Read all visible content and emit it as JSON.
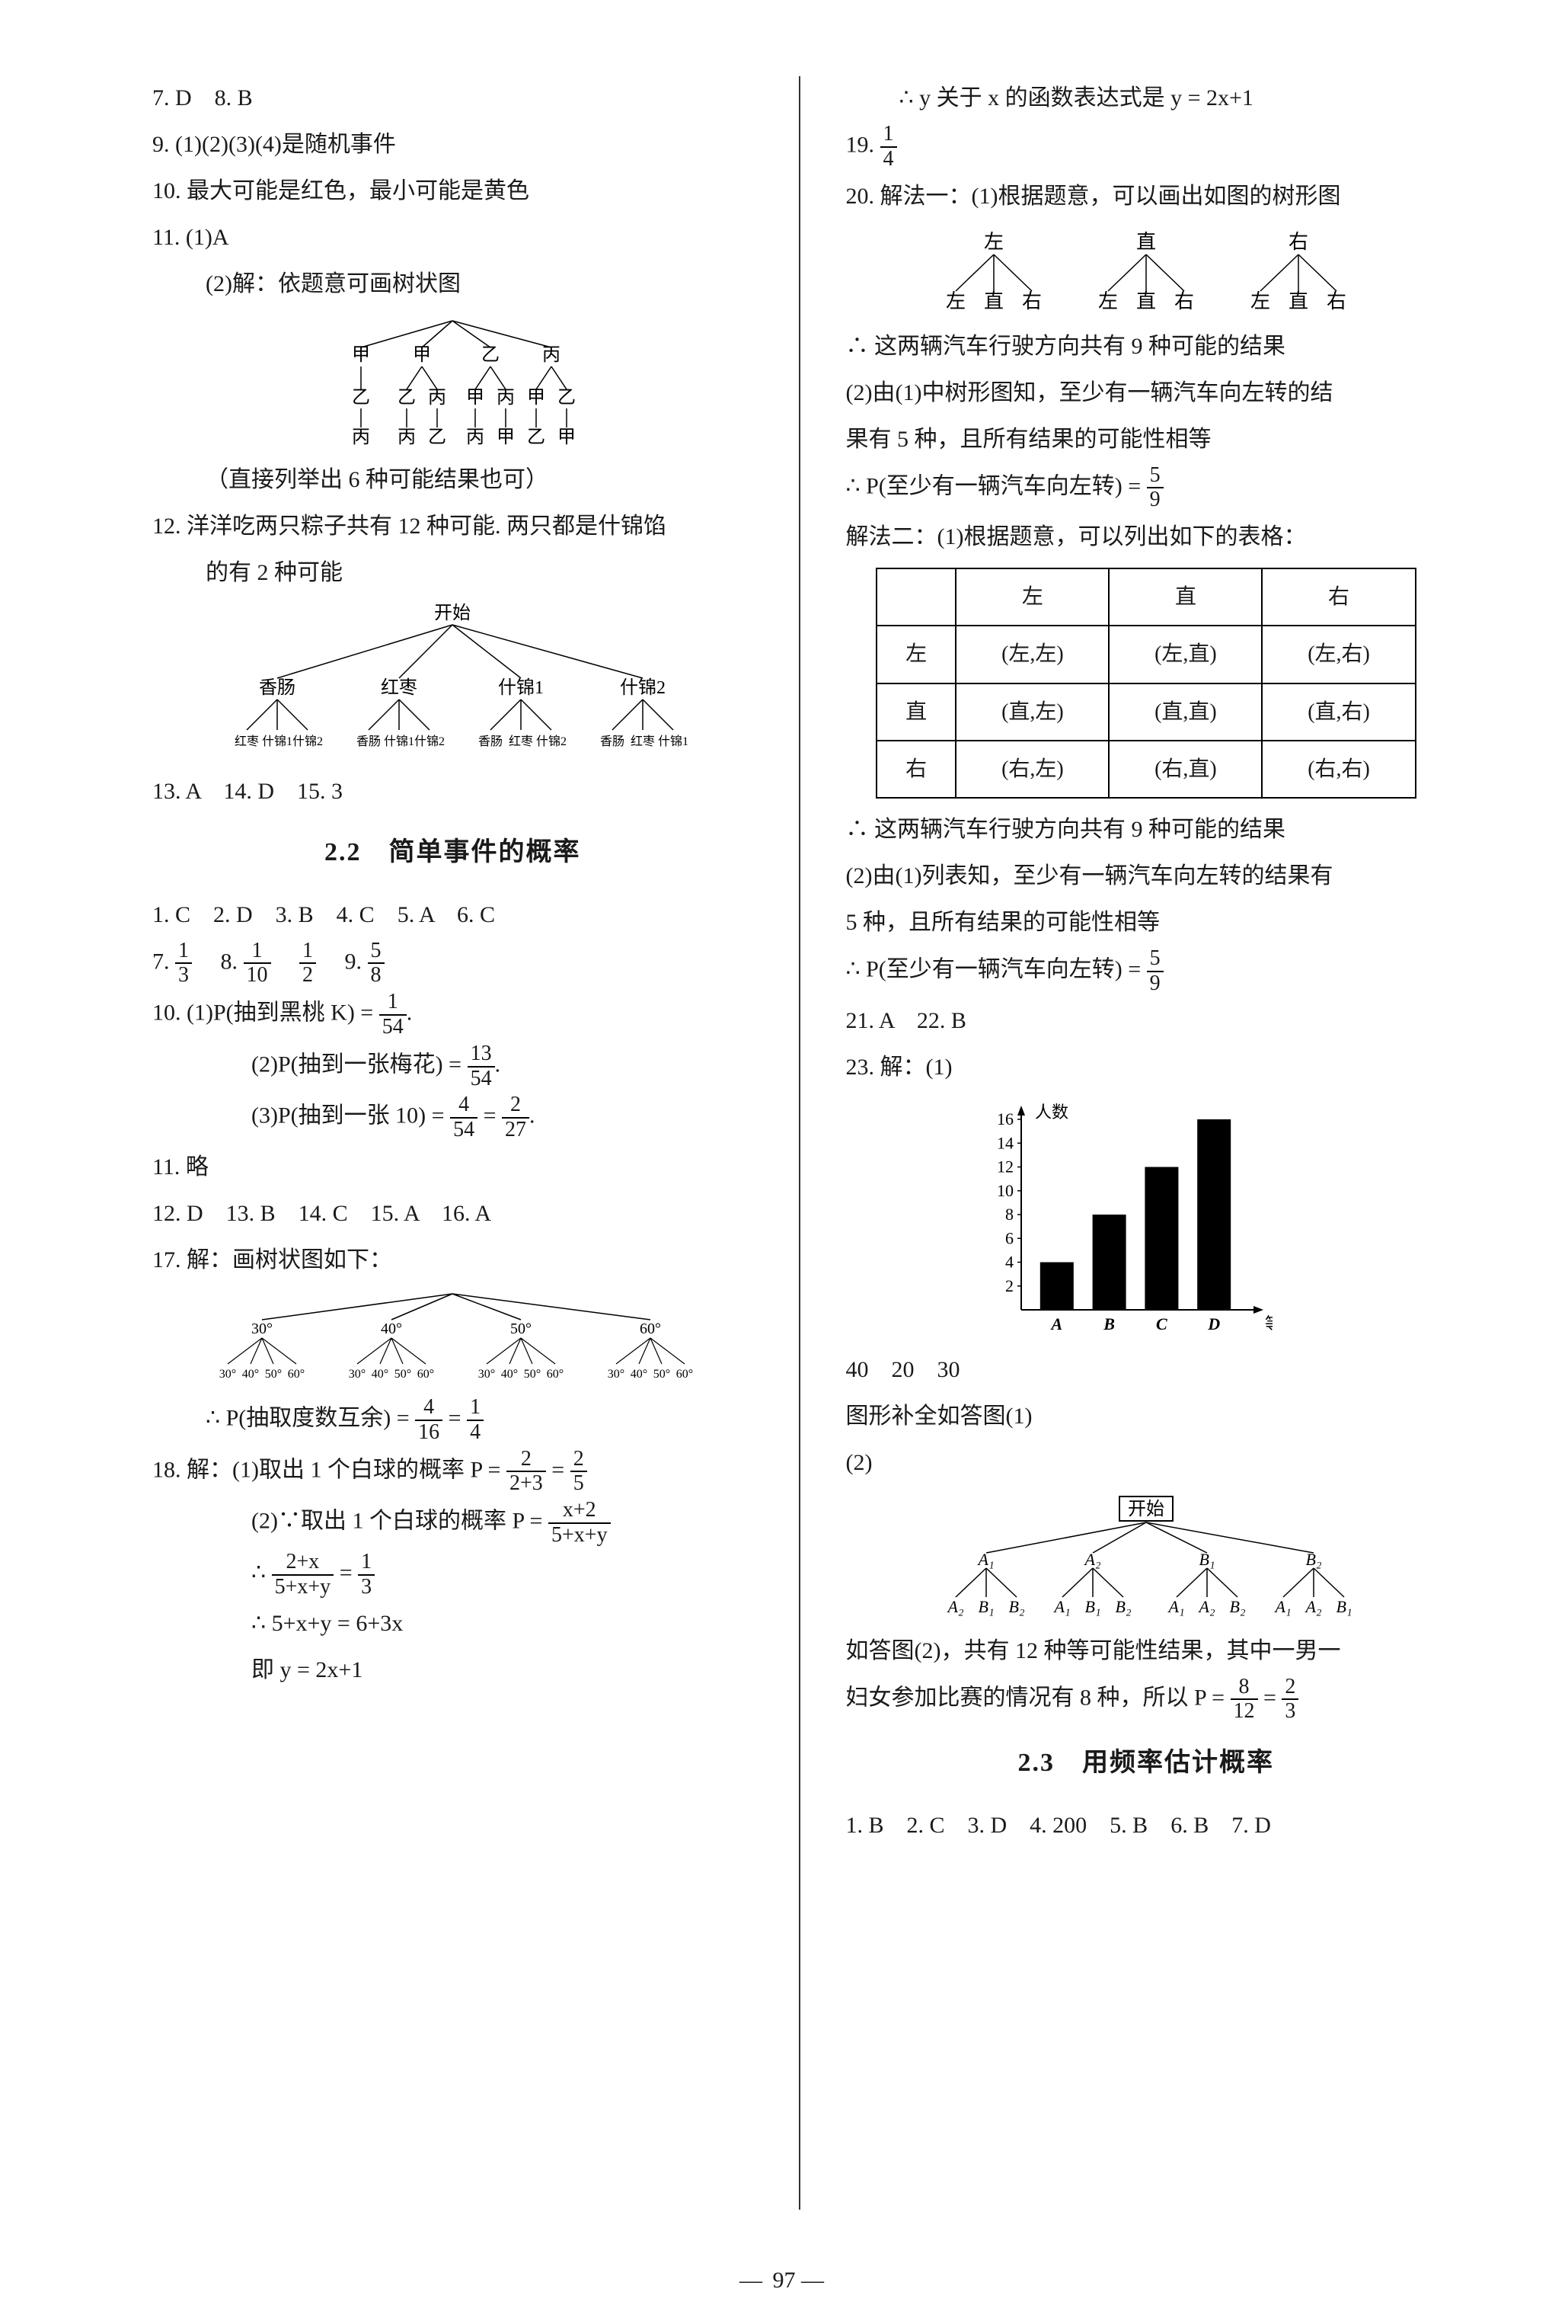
{
  "left": {
    "l7_8": "7. D　8. B",
    "l9": "9. (1)(2)(3)(4)是随机事件",
    "l10": "10. 最大可能是红色，最小可能是黄色",
    "l11": "11. (1)A",
    "l11b": "(2)解：依题意可画树状图",
    "tree1": {
      "level1": [
        "甲",
        "甲",
        "乙",
        "丙"
      ],
      "level2": [
        "乙",
        "乙 丙",
        "甲 丙",
        "甲 乙"
      ],
      "level3": [
        "丙",
        "丙 乙",
        "丙 甲",
        "乙 甲"
      ]
    },
    "l11c": "（直接列举出 6 种可能结果也可）",
    "l12a": "12. 洋洋吃两只粽子共有 12 种可能. 两只都是什锦馅",
    "l12b": "的有 2 种可能",
    "tree2": {
      "root": "开始",
      "level1": [
        "香肠",
        "红枣",
        "什锦1",
        "什锦2"
      ],
      "level2": [
        "红枣 什锦1 什锦2",
        "香肠 什锦1 什锦2",
        "香肠 红枣 什锦2",
        "香肠 红枣 什锦1"
      ]
    },
    "l13": "13. A　14. D　15. 3",
    "sec22": "2.2　简单事件的概率",
    "l1_6": "1. C　2. D　3. B　4. C　5. A　6. C",
    "l7f": {
      "pre": "7. ",
      "n1": "1",
      "d1": "3",
      "sep1": "　8. ",
      "n2": "1",
      "d2": "10",
      "sep2": "　",
      "n3": "1",
      "d3": "2",
      "sep3": "　9. ",
      "n4": "5",
      "d4": "8"
    },
    "l10a": {
      "pre": "10. (1)P(抽到黑桃 K) = ",
      "n": "1",
      "d": "54",
      "suf": "."
    },
    "l10b": {
      "pre": "(2)P(抽到一张梅花) = ",
      "n": "13",
      "d": "54",
      "suf": "."
    },
    "l10c": {
      "pre": "(3)P(抽到一张 10) = ",
      "n1": "4",
      "d1": "54",
      "mid": " = ",
      "n2": "2",
      "d2": "27",
      "suf": "."
    },
    "l11s": "11. 略",
    "l12s": "12. D　13. B　14. C　15. A　16. A",
    "l17": "17. 解：画树状图如下：",
    "tree3": {
      "level1": [
        "30°",
        "40°",
        "50°",
        "60°"
      ],
      "level2": [
        "30° 40° 50° 60°",
        "30° 40° 50° 60°",
        "30° 40° 50° 60°",
        "30° 40° 50° 60°"
      ]
    },
    "l17p": {
      "pre": "∴ P(抽取度数互余) = ",
      "n1": "4",
      "d1": "16",
      "mid": " = ",
      "n2": "1",
      "d2": "4"
    },
    "l18a": {
      "pre": "18. 解：(1)取出 1 个白球的概率 P = ",
      "n1": "2",
      "d1": "2+3",
      "mid": " = ",
      "n2": "2",
      "d2": "5"
    },
    "l18b": {
      "pre": "(2)∵取出 1 个白球的概率 P = ",
      "n": "x+2",
      "d": "5+x+y"
    },
    "l18c": {
      "pre": "∴ ",
      "n": "2+x",
      "d": "5+x+y",
      "mid": " = ",
      "n2": "1",
      "d2": "3"
    },
    "l18d": "∴ 5+x+y = 6+3x",
    "l18e": "即 y = 2x+1"
  },
  "right": {
    "r0": "∴ y 关于 x 的函数表达式是 y = 2x+1",
    "r19": {
      "pre": "19. ",
      "n": "1",
      "d": "4"
    },
    "r20": "20. 解法一：(1)根据题意，可以画出如图的树形图",
    "tree4": {
      "level1": [
        "左",
        "直",
        "右"
      ],
      "level2": [
        "左 直 右",
        "左 直 右",
        "左 直 右"
      ]
    },
    "r20b": "∴ 这两辆汽车行驶方向共有 9 种可能的结果",
    "r20c": "(2)由(1)中树形图知，至少有一辆汽车向左转的结",
    "r20d": "果有 5 种，且所有结果的可能性相等",
    "r20e": {
      "pre": "∴ P(至少有一辆汽车向左转) = ",
      "n": "5",
      "d": "9"
    },
    "r20f": "解法二：(1)根据题意，可以列出如下的表格：",
    "table": {
      "headers": [
        "",
        "左",
        "直",
        "右"
      ],
      "rows": [
        [
          "左",
          "(左,左)",
          "(左,直)",
          "(左,右)"
        ],
        [
          "直",
          "(直,左)",
          "(直,直)",
          "(直,右)"
        ],
        [
          "右",
          "(右,左)",
          "(右,直)",
          "(右,右)"
        ]
      ]
    },
    "r20g": "∴ 这两辆汽车行驶方向共有 9 种可能的结果",
    "r20h": "(2)由(1)列表知，至少有一辆汽车向左转的结果有",
    "r20i": "5 种，且所有结果的可能性相等",
    "r20j": {
      "pre": "∴ P(至少有一辆汽车向左转) = ",
      "n": "5",
      "d": "9"
    },
    "r21": "21. A　22. B",
    "r23": "23. 解：(1)",
    "chart": {
      "ylabel": "人数",
      "xlabel": "等级",
      "categories": [
        "A",
        "B",
        "C",
        "D"
      ],
      "values": [
        4,
        8,
        12,
        16
      ],
      "ymax": 16,
      "ystep": 2,
      "bar_color": "#000000",
      "axis_color": "#000000",
      "axis_fontsize": 22
    },
    "r23b": "40　20　30",
    "r23c": "图形补全如答图(1)",
    "r23d": "(2)",
    "tree5": {
      "root": "开始",
      "level1": [
        "A₁",
        "A₂",
        "B₁",
        "B₂"
      ],
      "level2": [
        "A₂ B₁ B₂",
        "A₁ B₁ B₂",
        "A₁ A₂ B₂",
        "A₁ A₂ B₁"
      ]
    },
    "r23e": "如答图(2)，共有 12 种等可能性结果，其中一男一",
    "r23f": {
      "pre": "妇女参加比赛的情况有 8 种，所以 P = ",
      "n1": "8",
      "d1": "12",
      "mid": " = ",
      "n2": "2",
      "d2": "3"
    },
    "sec23": "2.3　用频率估计概率",
    "r_end": "1. B　2. C　3. D　4. 200　5. B　6. B　7. D"
  },
  "pagenum": "97"
}
